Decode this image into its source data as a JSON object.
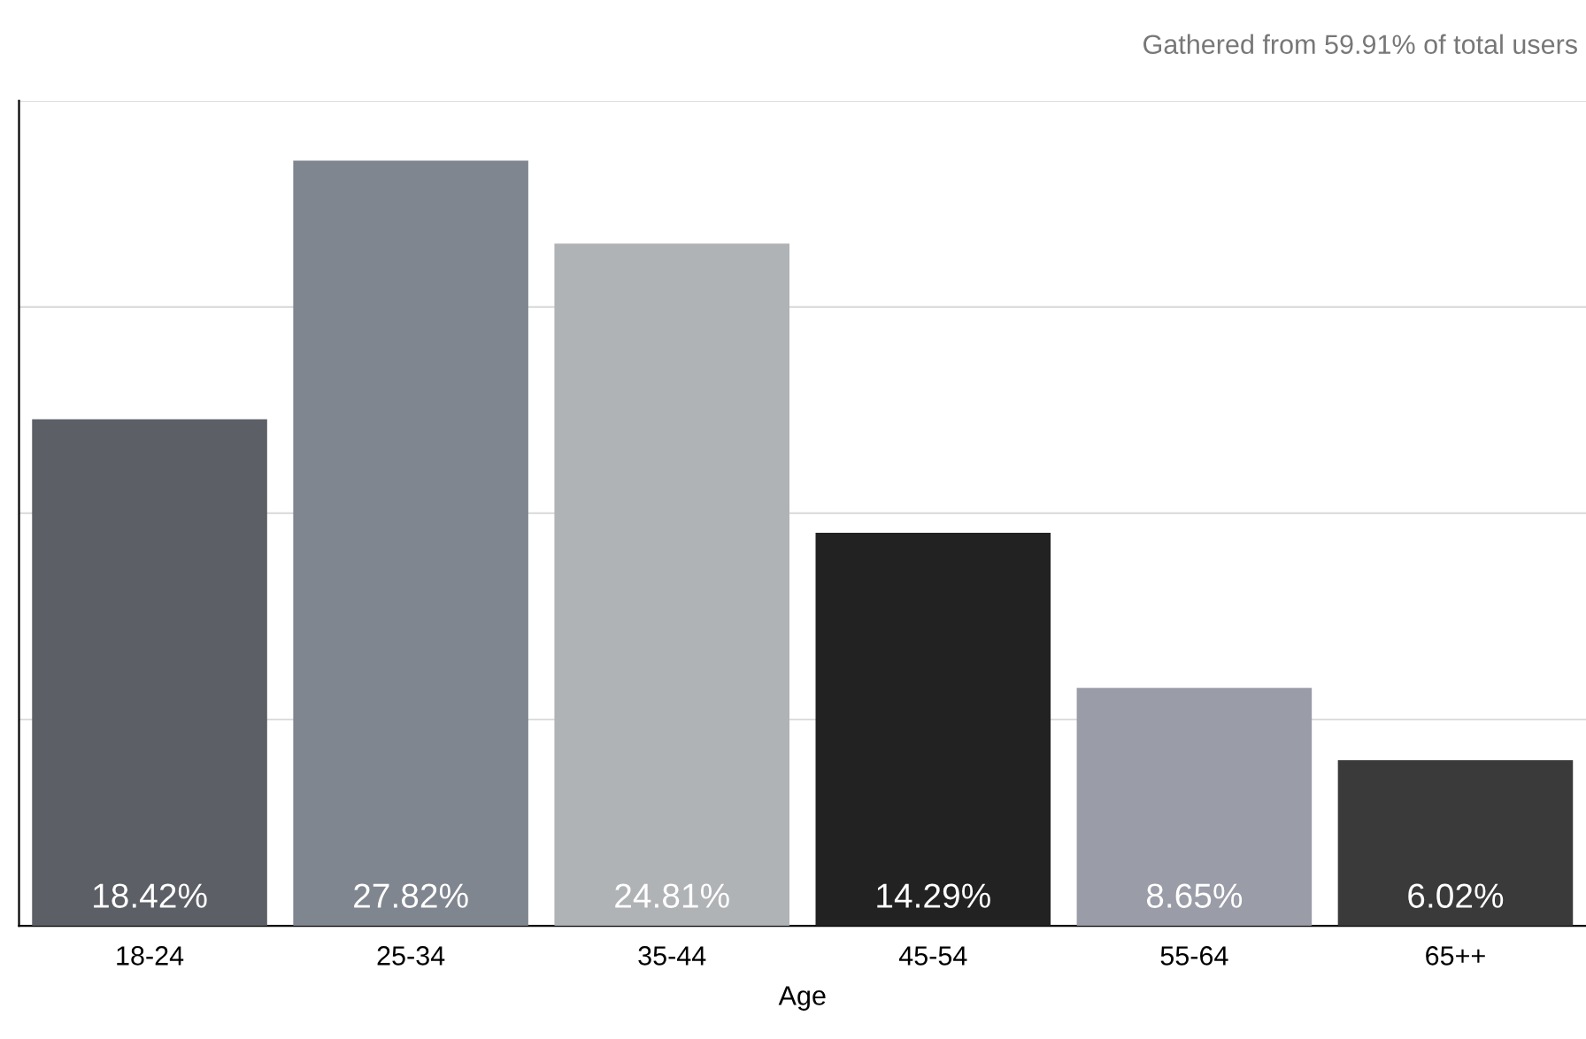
{
  "chart_data": {
    "type": "bar",
    "xlabel": "Age",
    "categories": [
      "18-24",
      "25-34",
      "35-44",
      "45-54",
      "55-64",
      "65++"
    ],
    "values": [
      18.42,
      27.82,
      24.81,
      14.29,
      8.65,
      6.02
    ],
    "colors": [
      "#5c5f66",
      "#80868f",
      "#b0b3b6",
      "#222222",
      "#9a9ca8",
      "#3a3a3a"
    ],
    "value_labels": [
      "18.42%",
      "27.82%",
      "24.81%",
      "14.29%",
      "8.65%",
      "6.02%"
    ],
    "ylim": [
      0,
      30
    ],
    "yticks": [
      {
        "value": 7.5,
        "label": null
      },
      {
        "value": 15,
        "label": null
      },
      {
        "value": 22.5,
        "label": null
      },
      {
        "value": 30,
        "label": null
      }
    ],
    "grid": "y",
    "tick_labels": "x",
    "annotations": [
      "Gathered from 59.91% of total users"
    ]
  }
}
